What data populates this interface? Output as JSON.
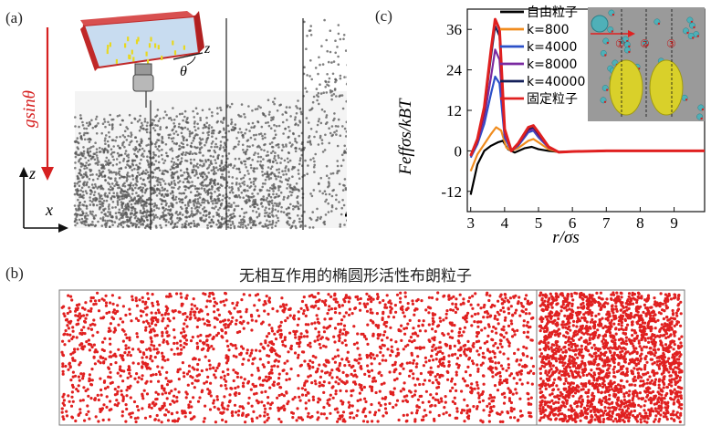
{
  "panel_a": {
    "label": "(a)",
    "gravity_label": "gsinθ",
    "axis_z": "z",
    "axis_x": "x",
    "inset_axis_z": "z",
    "inset_angle": "θ",
    "colors": {
      "arrow": "#d62020",
      "particles": "#555555"
    }
  },
  "panel_b": {
    "label": "(b)",
    "title": "无相互作用的椭圆形活性布朗粒子",
    "colors": {
      "particles": "#e02020"
    }
  },
  "panel_c": {
    "label": "(c)",
    "inset_labels": [
      "①",
      "②",
      "③"
    ],
    "chart_data": {
      "type": "line",
      "xlabel": "r/σs",
      "ylabel": "Feffσs/kBT",
      "xlim": [
        2.9,
        9.9
      ],
      "ylim": [
        -18,
        42
      ],
      "xticks": [
        3,
        4,
        5,
        6,
        7,
        8,
        9
      ],
      "yticks": [
        -12,
        0,
        12,
        24,
        36
      ],
      "series": [
        {
          "name": "自由粒子",
          "color": "#000000",
          "x": [
            3.0,
            3.2,
            3.4,
            3.6,
            3.8,
            3.95,
            4.1,
            4.3,
            4.6,
            4.8,
            5.0,
            5.3,
            5.6,
            6.0,
            7.0,
            8.0,
            9.0,
            9.9
          ],
          "y": [
            -13,
            -4,
            0,
            1.5,
            2.5,
            3,
            0.5,
            -0.5,
            0.8,
            1.2,
            0.5,
            0,
            -0.3,
            -0.2,
            0,
            0,
            0,
            0
          ]
        },
        {
          "name": "k=800",
          "color": "#f08c1e",
          "x": [
            3.0,
            3.2,
            3.4,
            3.6,
            3.75,
            3.9,
            4.05,
            4.2,
            4.4,
            4.7,
            4.85,
            5.0,
            5.3,
            5.6,
            6.0,
            7.0,
            8.0,
            9.0,
            9.9
          ],
          "y": [
            -6,
            -1,
            2,
            5,
            7,
            6,
            1,
            0,
            0.8,
            3,
            3.5,
            2.5,
            0.5,
            -0.4,
            -0.2,
            0,
            0,
            0,
            0
          ]
        },
        {
          "name": "k=4000",
          "color": "#2c50c8",
          "x": [
            3.0,
            3.2,
            3.4,
            3.6,
            3.72,
            3.85,
            4.0,
            4.2,
            4.4,
            4.7,
            4.85,
            5.0,
            5.3,
            5.6,
            6.0,
            7.0,
            8.0,
            9.0,
            9.9
          ],
          "y": [
            -2,
            2,
            8,
            17,
            22,
            20,
            4,
            0,
            1.5,
            5.5,
            6,
            4,
            1,
            -0.4,
            -0.2,
            0,
            0,
            0,
            0
          ]
        },
        {
          "name": "k=8000",
          "color": "#7a2aa0",
          "x": [
            3.0,
            3.2,
            3.4,
            3.6,
            3.72,
            3.85,
            4.0,
            4.2,
            4.4,
            4.7,
            4.85,
            5.0,
            5.3,
            5.6,
            6.0,
            7.0,
            8.0,
            9.0,
            9.9
          ],
          "y": [
            -1.5,
            2.5,
            10,
            22,
            30,
            27,
            5,
            0,
            1.8,
            6,
            6.5,
            4.5,
            1,
            -0.4,
            -0.2,
            0,
            0,
            0,
            0
          ]
        },
        {
          "name": "k=40000",
          "color": "#14205a",
          "x": [
            3.0,
            3.2,
            3.4,
            3.6,
            3.72,
            3.85,
            4.0,
            4.2,
            4.4,
            4.7,
            4.85,
            5.0,
            5.3,
            5.6,
            6.0,
            7.0,
            8.0,
            9.0,
            9.9
          ],
          "y": [
            -1.5,
            3,
            12,
            28,
            37,
            34,
            6,
            0,
            2,
            6.5,
            7,
            5,
            1.2,
            -0.4,
            -0.2,
            0,
            0,
            0,
            0
          ]
        },
        {
          "name": "固定粒子",
          "color": "#e02020",
          "x": [
            3.0,
            3.2,
            3.4,
            3.6,
            3.72,
            3.85,
            4.0,
            4.2,
            4.4,
            4.7,
            4.85,
            5.0,
            5.3,
            5.6,
            6.0,
            7.0,
            8.0,
            9.0,
            9.9
          ],
          "y": [
            -1.5,
            3.5,
            13,
            30,
            39,
            36,
            6.5,
            0,
            2.2,
            7,
            7.5,
            5.5,
            1.2,
            -0.4,
            -0.2,
            0,
            0,
            0,
            0
          ]
        }
      ]
    }
  }
}
